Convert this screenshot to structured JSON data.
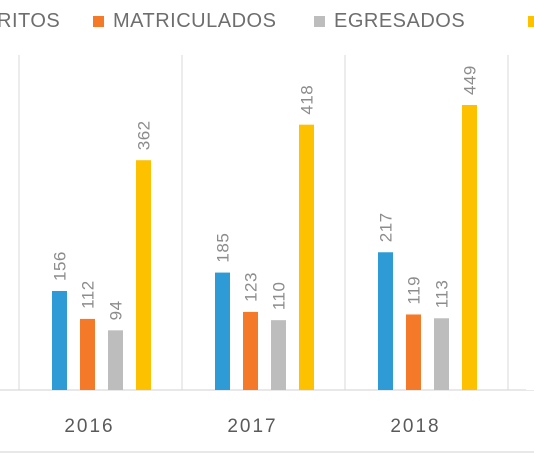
{
  "chart_data": {
    "type": "bar",
    "categories": [
      "2016",
      "2017",
      "2018"
    ],
    "series": [
      {
        "name": "INSCRITOS",
        "visible_legend_text": "RITOS",
        "color": "#2E9BD6",
        "values": [
          156,
          185,
          217
        ]
      },
      {
        "name": "MATRICULADOS",
        "visible_legend_text": "MATRICULADOS",
        "color": "#F47A2A",
        "values": [
          112,
          123,
          119
        ]
      },
      {
        "name": "EGRESADOS",
        "visible_legend_text": "EGRESADOS",
        "color": "#BDBDBD",
        "values": [
          94,
          110,
          113
        ]
      },
      {
        "name": "",
        "visible_legend_text": "",
        "color": "#FDC100",
        "values": [
          362,
          418,
          449
        ]
      }
    ],
    "ylim": [
      0,
      500
    ],
    "grid": "vertical-category-separators",
    "legend": "top",
    "data_labels": true,
    "label_color": "#8C8C8C",
    "axis_color": "#D9D9D9"
  }
}
